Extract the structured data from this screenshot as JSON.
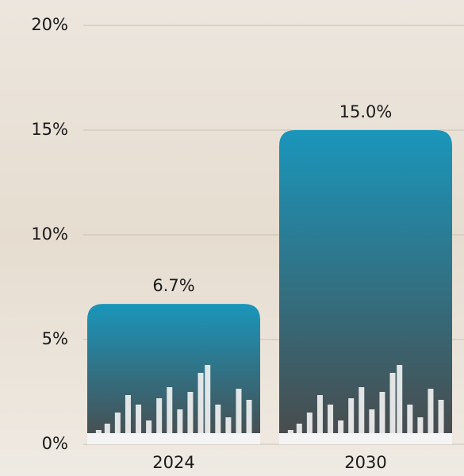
{
  "chart_data": {
    "type": "bar",
    "categories": [
      "2024",
      "2030"
    ],
    "values": [
      6.7,
      15.0
    ],
    "value_labels": [
      "6.7%",
      "15.0%"
    ],
    "color": [
      "#1a96bb",
      "#4a4a4a"
    ],
    "ylim": [
      0,
      20
    ],
    "yticks": [
      {
        "value": 0,
        "label": "0%"
      },
      {
        "value": 5,
        "label": "5%"
      },
      {
        "value": 10,
        "label": "10%"
      },
      {
        "value": 15,
        "label": "15%"
      },
      {
        "value": 20,
        "label": "20%"
      }
    ],
    "grid": true
  }
}
